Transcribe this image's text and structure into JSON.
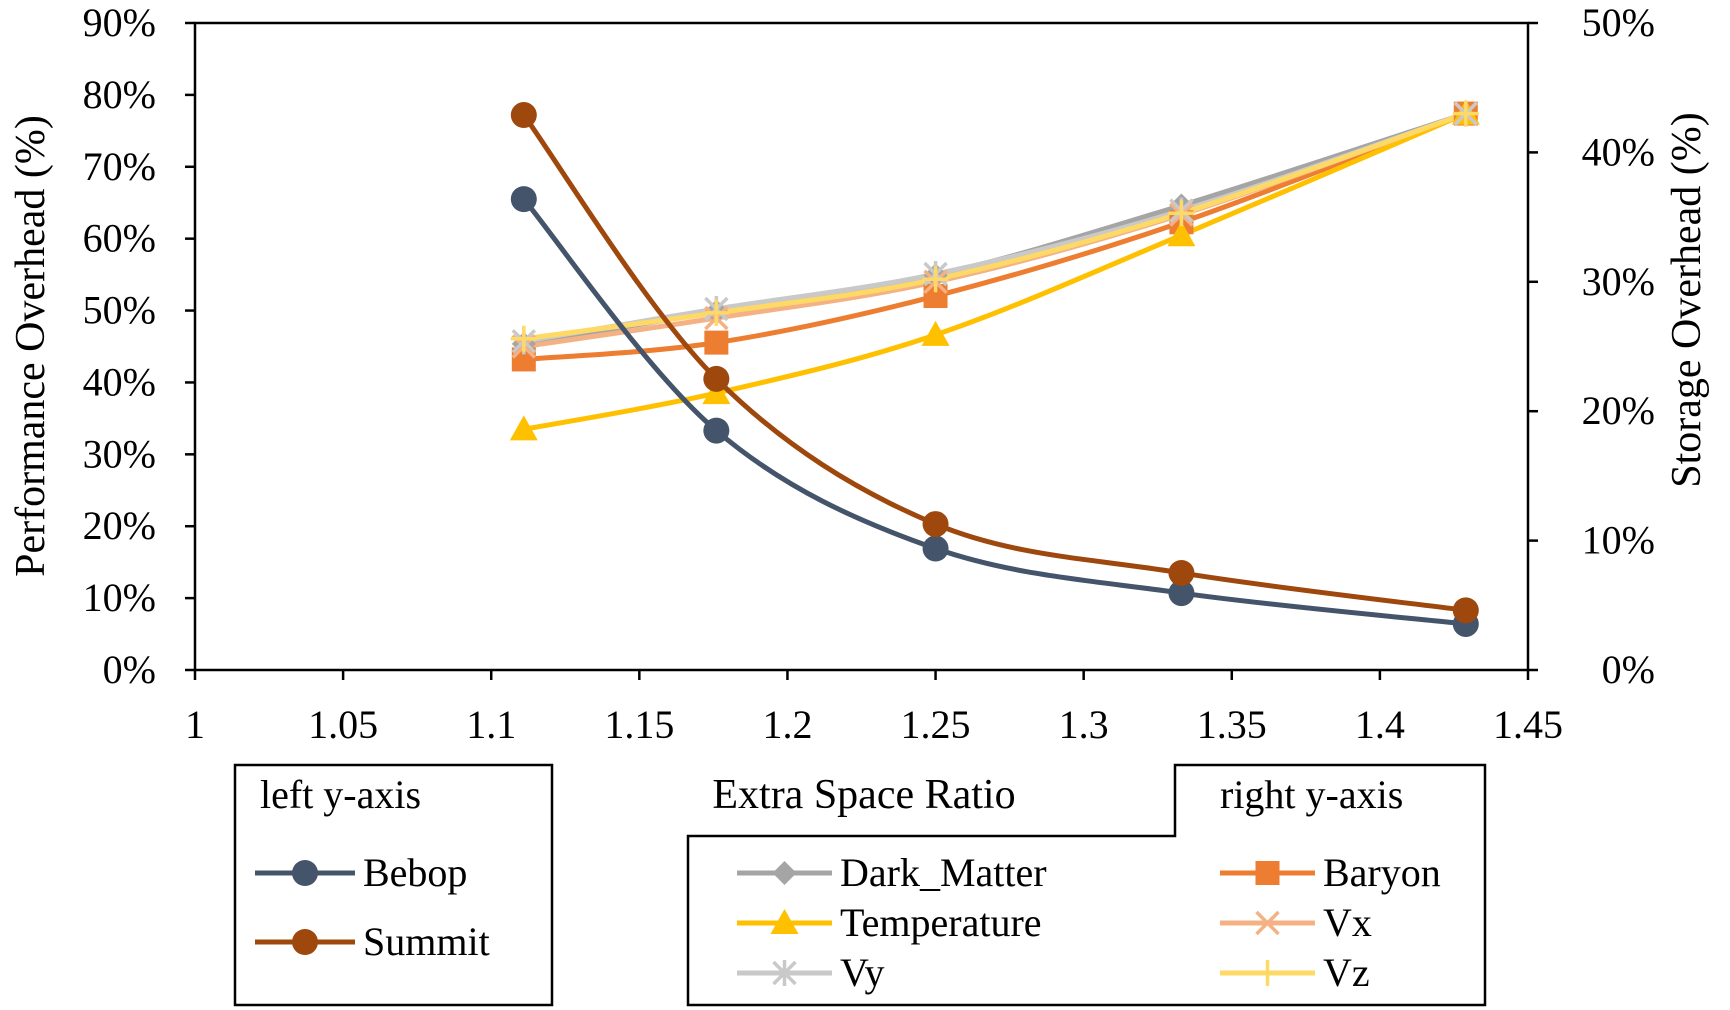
{
  "chart_data": {
    "type": "line",
    "xlabel": "Extra Space Ratio",
    "ylabel_left": "Performance Overhead (%)",
    "ylabel_right": "Storage Overhead (%)",
    "xlim": [
      1,
      1.45
    ],
    "xticks": [
      "1",
      "1.05",
      "1.1",
      "1.15",
      "1.2",
      "1.25",
      "1.3",
      "1.35",
      "1.4",
      "1.45"
    ],
    "ylim_left": [
      0,
      90
    ],
    "yticks_left": [
      "0%",
      "10%",
      "20%",
      "30%",
      "40%",
      "50%",
      "60%",
      "70%",
      "80%",
      "90%"
    ],
    "ylim_right": [
      0,
      50
    ],
    "yticks_right": [
      "0%",
      "10%",
      "20%",
      "30%",
      "40%",
      "50%"
    ],
    "x": [
      1.111,
      1.176,
      1.25,
      1.333,
      1.429
    ],
    "legend_left_title": "left y-axis",
    "legend_right_title": "right y-axis",
    "series": [
      {
        "name": "Bebop",
        "axis": "left",
        "color": "#44546a",
        "marker": "circle",
        "values": [
          65.5,
          33.3,
          16.9,
          10.7,
          6.4
        ]
      },
      {
        "name": "Summit",
        "axis": "left",
        "color": "#9e480e",
        "marker": "circle",
        "values": [
          77.2,
          40.5,
          20.3,
          13.5,
          8.3
        ]
      },
      {
        "name": "Dark_Matter",
        "axis": "right",
        "color": "#a5a5a5",
        "marker": "diamond",
        "values": [
          25.2,
          27.7,
          30.5,
          35.9,
          43.0
        ]
      },
      {
        "name": "Baryon",
        "axis": "right",
        "color": "#ed7d31",
        "marker": "square",
        "values": [
          24.0,
          25.3,
          28.9,
          34.6,
          43.0
        ]
      },
      {
        "name": "Temperature",
        "axis": "right",
        "color": "#ffc000",
        "marker": "triangle",
        "values": [
          18.6,
          21.4,
          25.9,
          33.6,
          43.0
        ]
      },
      {
        "name": "Vx",
        "axis": "right",
        "color": "#f4b183",
        "marker": "x",
        "values": [
          25.0,
          27.2,
          30.0,
          35.2,
          43.0
        ]
      },
      {
        "name": "Vy",
        "axis": "right",
        "color": "#c9c9c9",
        "marker": "asterisk",
        "values": [
          25.4,
          27.9,
          30.6,
          35.5,
          43.0
        ]
      },
      {
        "name": "Vz",
        "axis": "right",
        "color": "#ffd966",
        "marker": "plus",
        "values": [
          25.6,
          27.6,
          30.2,
          35.3,
          43.0
        ]
      }
    ]
  }
}
